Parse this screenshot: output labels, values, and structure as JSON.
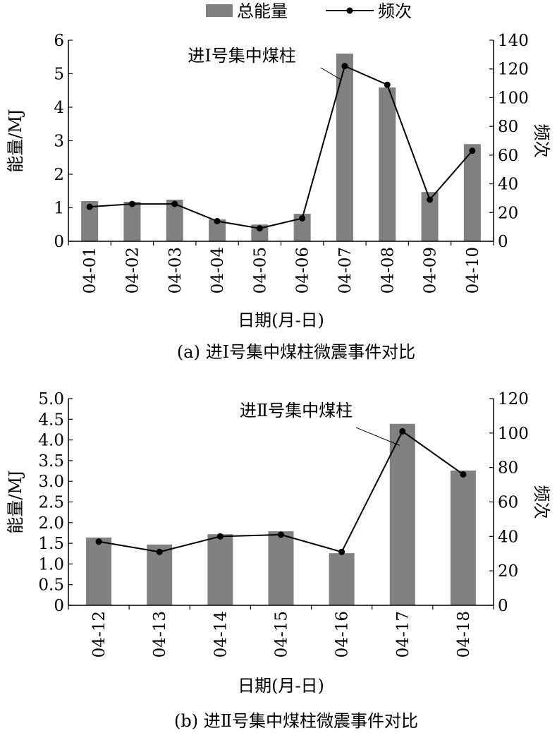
{
  "legend": {
    "bar_label": "总能量",
    "line_label": "频次"
  },
  "colors": {
    "bar": "#808080",
    "line": "#000000"
  },
  "chart_data": [
    {
      "type": "bar+line",
      "caption": "(a) 进Ⅰ号集中煤柱微震事件对比",
      "annotation": "进Ⅰ号集中煤柱",
      "annotation_index": 6,
      "xlabel": "日期(月-日)",
      "ylabel": "能量/MJ",
      "y2label": "频次",
      "ylim": [
        0,
        6
      ],
      "yticks": [
        "0",
        "1",
        "2",
        "3",
        "4",
        "5",
        "6"
      ],
      "y2lim": [
        0,
        140
      ],
      "y2ticks": [
        "0",
        "20",
        "40",
        "60",
        "80",
        "100",
        "120",
        "140"
      ],
      "categories": [
        "04-01",
        "04-02",
        "04-03",
        "04-04",
        "04-05",
        "04-06",
        "04-07",
        "04-08",
        "04-09",
        "04-10"
      ],
      "series": [
        {
          "name": "总能量",
          "axis": "left",
          "values": [
            1.2,
            1.18,
            1.24,
            0.65,
            0.5,
            0.82,
            5.6,
            4.59,
            1.47,
            2.9
          ]
        },
        {
          "name": "频次",
          "axis": "right",
          "values": [
            24,
            26,
            26,
            14,
            9,
            16,
            122,
            109,
            29,
            63
          ]
        }
      ]
    },
    {
      "type": "bar+line",
      "caption": "(b) 进Ⅱ号集中煤柱微震事件对比",
      "annotation": "进Ⅱ号集中煤柱",
      "annotation_index": 5,
      "xlabel": "日期(月-日)",
      "ylabel": "能量/MJ",
      "y2label": "频次",
      "ylim": [
        0,
        5
      ],
      "yticks": [
        "0",
        "0.5",
        "1.0",
        "1.5",
        "2.0",
        "2.5",
        "3.0",
        "3.5",
        "4.0",
        "4.5",
        "5.0"
      ],
      "y2lim": [
        0,
        120
      ],
      "y2ticks": [
        "0",
        "20",
        "40",
        "60",
        "80",
        "100",
        "120"
      ],
      "categories": [
        "04-12",
        "04-13",
        "04-14",
        "04-15",
        "04-16",
        "04-17",
        "04-18"
      ],
      "series": [
        {
          "name": "总能量",
          "axis": "left",
          "values": [
            1.64,
            1.47,
            1.72,
            1.79,
            1.26,
            4.39,
            3.26
          ]
        },
        {
          "name": "频次",
          "axis": "right",
          "values": [
            37,
            31,
            40,
            41,
            31,
            101,
            76
          ]
        }
      ]
    }
  ]
}
